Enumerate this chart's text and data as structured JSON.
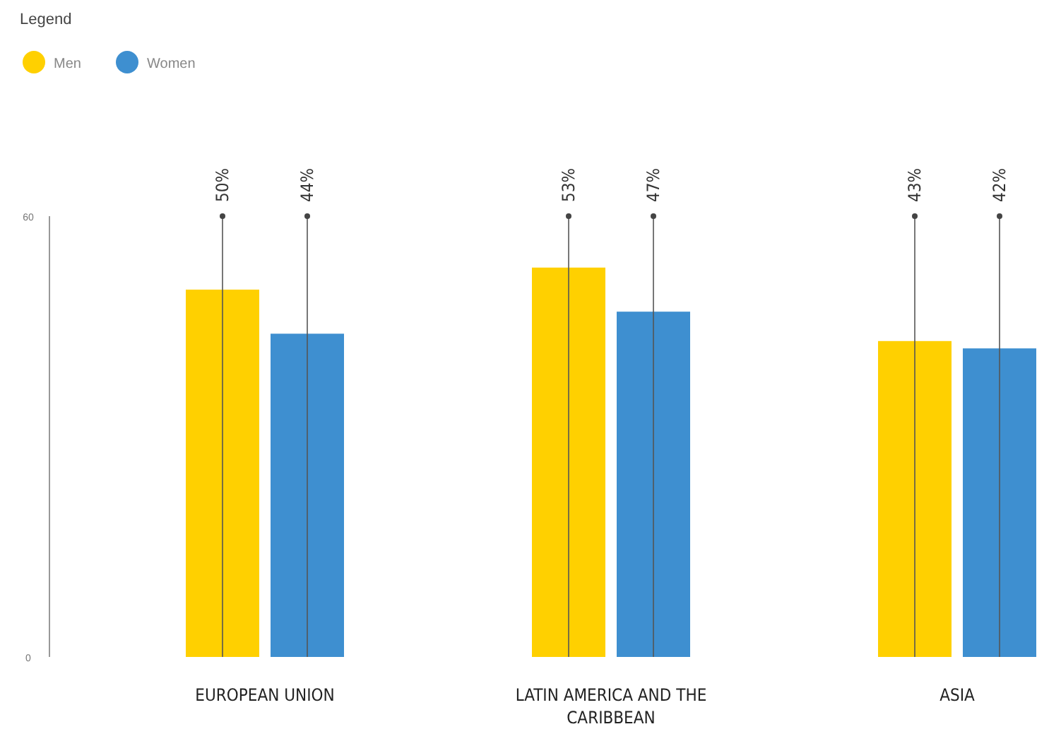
{
  "chart_data": {
    "type": "bar",
    "legend_title": "Legend",
    "legend": "top left",
    "categories": [
      "EUROPEAN UNION",
      "LATIN AMERICA AND THE CARIBBEAN",
      "ASIA"
    ],
    "series": [
      {
        "name": "Men",
        "color": "#ffd000",
        "values": [
          50,
          53,
          43
        ],
        "value_labels": [
          "50%",
          "53%",
          "43%"
        ]
      },
      {
        "name": "Women",
        "color": "#3e8fd0",
        "values": [
          44,
          47,
          42
        ],
        "value_labels": [
          "44%",
          "47%",
          "42%"
        ]
      }
    ],
    "ylim": [
      0,
      60
    ],
    "yticks": [
      0,
      60
    ],
    "grid": false
  }
}
